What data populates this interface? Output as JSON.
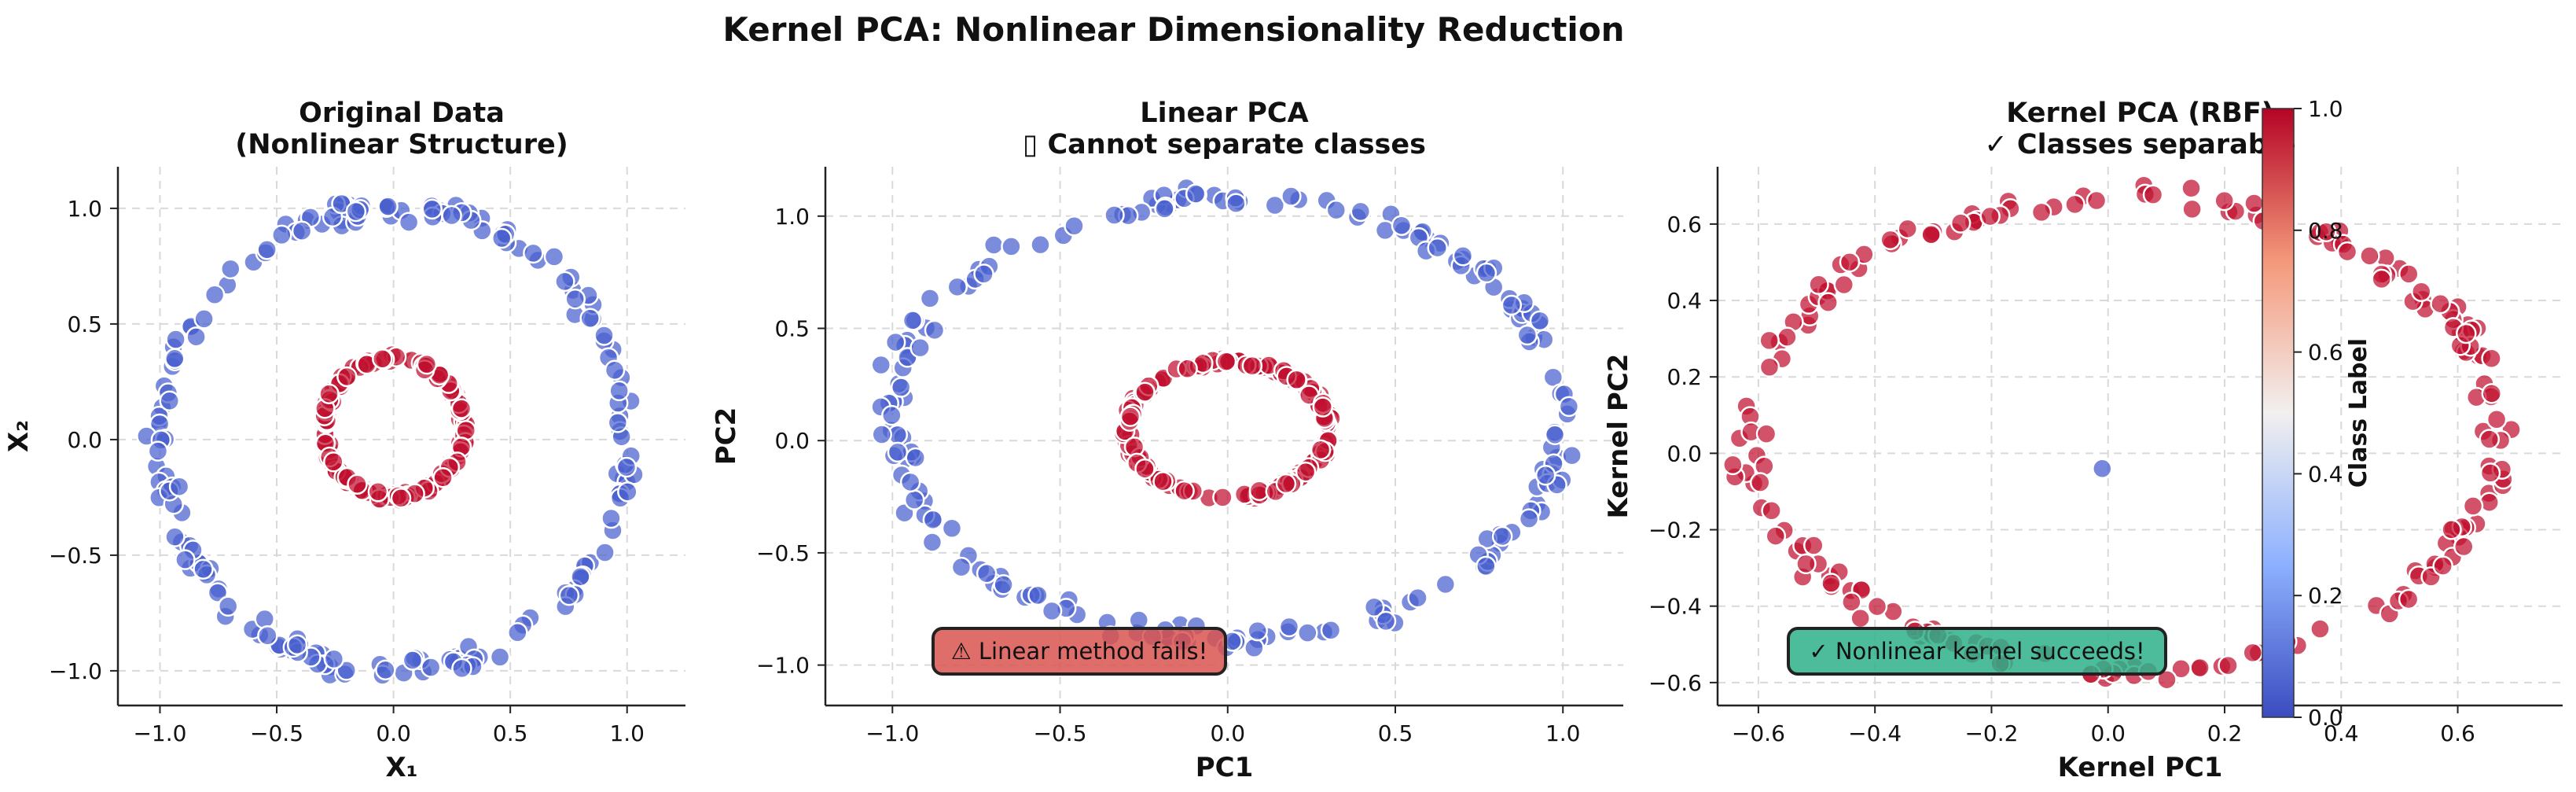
{
  "figure_title": "Kernel PCA: Nonlinear Dimensionality Reduction",
  "colors": {
    "class0": "#4a5fcf",
    "class1": "#c0102f",
    "grid": "#d9d9d9",
    "fail_box": "#d9534f",
    "success_box": "#2eb08a"
  },
  "chart_data": [
    {
      "type": "scatter",
      "title": "Original Data\n(Nonlinear Structure)",
      "xlabel": "X₁",
      "ylabel": "X₂",
      "xlim": [
        -1.18,
        1.25
      ],
      "ylim": [
        -1.15,
        1.18
      ],
      "xticks": [
        -1.0,
        -0.5,
        0.0,
        0.5,
        1.0
      ],
      "yticks": [
        -1.0,
        -0.5,
        0.0,
        0.5,
        1.0
      ],
      "xtick_labels": [
        "−1.0",
        "−0.5",
        "0.0",
        "0.5",
        "1.0"
      ],
      "ytick_labels": [
        "−1.0",
        "−0.5",
        "0.0",
        "0.5",
        "1.0"
      ],
      "grid": true,
      "series": [
        {
          "class": 0,
          "shape": "ring",
          "center": [
            0.0,
            0.0
          ],
          "radius_x": 1.0,
          "radius_y": 1.0,
          "count": 200
        },
        {
          "class": 1,
          "shape": "ring",
          "center": [
            0.0,
            0.05
          ],
          "radius_x": 0.3,
          "radius_y": 0.3,
          "count": 200
        }
      ]
    },
    {
      "type": "scatter",
      "title": "Linear PCA\n▯ Cannot separate classes",
      "xlabel": "PC1",
      "ylabel": "PC2",
      "xlim": [
        -1.2,
        1.18
      ],
      "ylim": [
        -1.18,
        1.22
      ],
      "xticks": [
        -1.0,
        -0.5,
        0.0,
        0.5,
        1.0
      ],
      "yticks": [
        -1.0,
        -0.5,
        0.0,
        0.5,
        1.0
      ],
      "xtick_labels": [
        "−1.0",
        "−0.5",
        "0.0",
        "0.5",
        "1.0"
      ],
      "ytick_labels": [
        "−1.0",
        "−0.5",
        "0.0",
        "0.5",
        "1.0"
      ],
      "grid": true,
      "annotation": "⚠ Linear method fails!",
      "series": [
        {
          "class": 0,
          "shape": "ring",
          "center": [
            0.0,
            0.1
          ],
          "radius_x": 1.0,
          "radius_y": 0.98,
          "count": 200
        },
        {
          "class": 1,
          "shape": "ring",
          "center": [
            0.0,
            0.05
          ],
          "radius_x": 0.3,
          "radius_y": 0.3,
          "count": 200
        }
      ]
    },
    {
      "type": "scatter",
      "title": "Kernel PCA (RBF)\n✓ Classes separable",
      "xlabel": "Kernel PC1",
      "ylabel": "Kernel PC2",
      "xlim": [
        -0.67,
        0.78
      ],
      "ylim": [
        -0.66,
        0.75
      ],
      "xticks": [
        -0.6,
        -0.4,
        -0.2,
        0.0,
        0.2,
        0.4,
        0.6
      ],
      "yticks": [
        -0.6,
        -0.4,
        -0.2,
        0.0,
        0.2,
        0.4,
        0.6
      ],
      "xtick_labels": [
        "−0.6",
        "−0.4",
        "−0.2",
        "0.0",
        "0.2",
        "0.4",
        "0.6"
      ],
      "ytick_labels": [
        "−0.6",
        "−0.4",
        "−0.2",
        "0.0",
        "0.2",
        "0.4",
        "0.6"
      ],
      "grid": true,
      "annotation": "✓ Nonlinear kernel succeeds!",
      "series": [
        {
          "class": 1,
          "shape": "ring",
          "center": [
            0.03,
            0.05
          ],
          "radius_x": 0.64,
          "radius_y": 0.62,
          "count": 200
        },
        {
          "class": 0,
          "shape": "point",
          "points": [
            [
              -0.01,
              -0.04
            ]
          ]
        }
      ],
      "colorbar": {
        "label": "Class Label",
        "range": [
          0.0,
          1.0
        ],
        "ticks": [
          "0.0",
          "0.2",
          "0.4",
          "0.6",
          "0.8",
          "1.0"
        ]
      }
    }
  ]
}
